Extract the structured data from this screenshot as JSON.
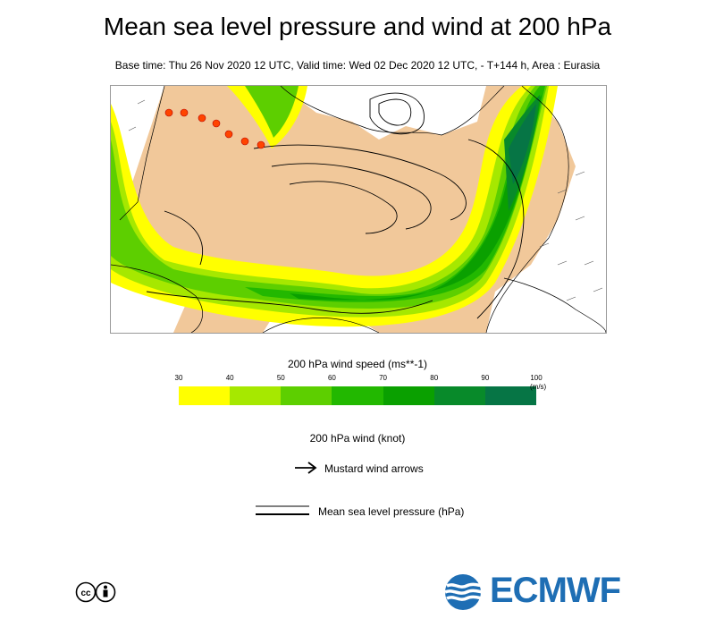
{
  "title": "Mean sea level pressure and wind at 200 hPa",
  "subtitle": "Base time: Thu 26 Nov 2020 12 UTC, Valid time: Wed 02 Dec 2020 12 UTC, - T+144 h, Area : Eurasia",
  "colorbar": {
    "title": "200 hPa wind speed (ms**-1)",
    "unit": "(m/s)",
    "ticks": [
      "30",
      "40",
      "50",
      "60",
      "70",
      "80",
      "90",
      "100"
    ],
    "colors": [
      "#ffff00",
      "#a6e800",
      "#5dcf00",
      "#22b800",
      "#0aa000",
      "#088a2a",
      "#067545"
    ]
  },
  "legend": {
    "wind_title": "200 hPa wind (knot)",
    "arrows_label": "Mustard wind arrows",
    "pressure_label": "Mean sea level pressure (hPa)"
  },
  "logo": {
    "text": "ECMWF",
    "color": "#1e6eb4"
  },
  "map": {
    "land_color": "#f1c89a",
    "sea_color": "#ffffff"
  }
}
